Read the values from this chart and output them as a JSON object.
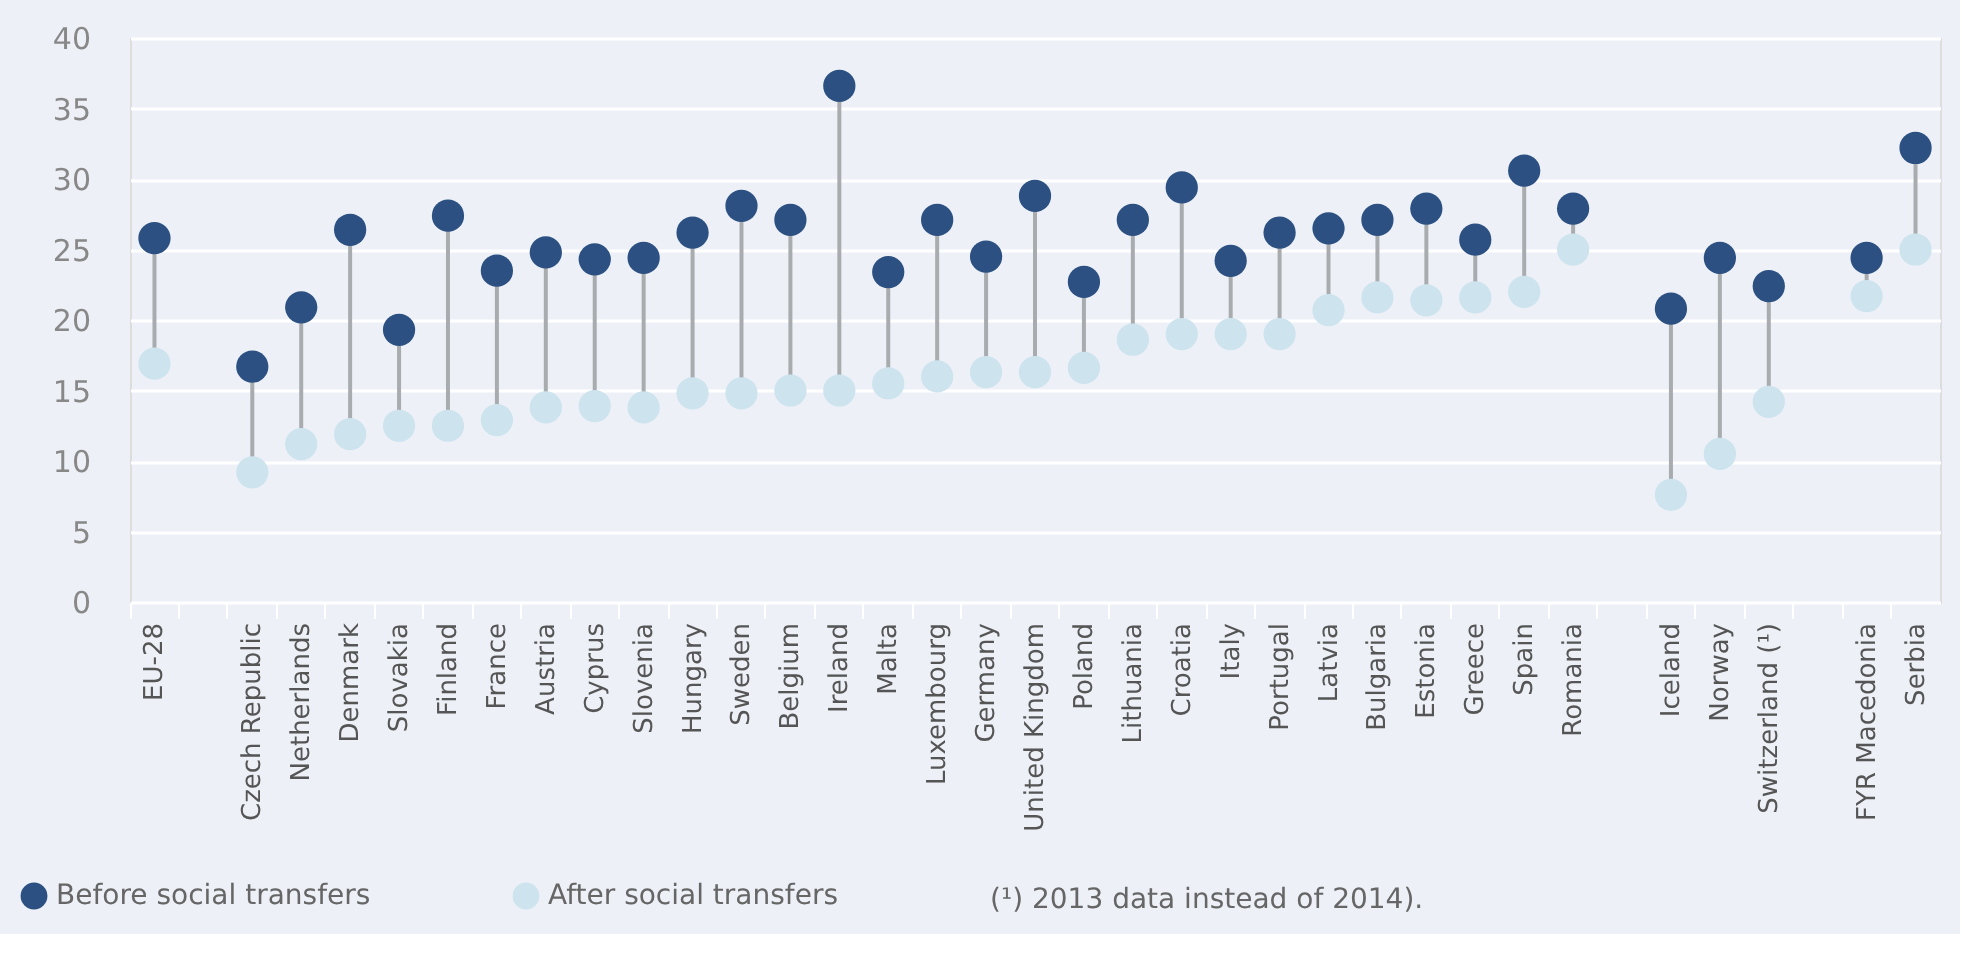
{
  "chart_data": {
    "type": "scatter",
    "categories": [
      "EU-28",
      null,
      "Czech Republic",
      "Netherlands",
      "Denmark",
      "Slovakia",
      "Finland",
      "France",
      "Austria",
      "Cyprus",
      "Slovenia",
      "Hungary",
      "Sweden",
      "Belgium",
      "Ireland",
      "Malta",
      "Luxembourg",
      "Germany",
      "United Kingdom",
      "Poland",
      "Lithuania",
      "Croatia",
      "Italy",
      "Portugal",
      "Latvia",
      "Bulgaria",
      "Estonia",
      "Greece",
      "Spain",
      "Romania",
      null,
      "Iceland",
      "Norway",
      "Switzerland (¹)",
      null,
      "FYR Macedonia",
      "Serbia"
    ],
    "series": [
      {
        "name": "Before social transfers",
        "color": "#2b5081",
        "values": [
          25.8,
          null,
          16.7,
          20.9,
          26.4,
          19.3,
          27.4,
          23.5,
          24.8,
          24.3,
          24.4,
          26.2,
          28.1,
          27.1,
          36.6,
          23.4,
          27.1,
          24.5,
          28.8,
          22.7,
          27.1,
          29.4,
          24.2,
          26.2,
          26.5,
          27.1,
          27.9,
          25.7,
          30.6,
          27.9,
          null,
          20.8,
          24.4,
          22.4,
          null,
          24.4,
          32.2
        ]
      },
      {
        "name": "After social transfers",
        "color": "#cde3ee",
        "values": [
          16.9,
          null,
          9.2,
          11.2,
          11.9,
          12.5,
          12.5,
          12.9,
          13.8,
          13.9,
          13.8,
          14.8,
          14.8,
          15.0,
          15.0,
          15.5,
          16.0,
          16.3,
          16.3,
          16.6,
          18.6,
          19.0,
          19.0,
          19.0,
          20.7,
          21.6,
          21.4,
          21.6,
          22.0,
          25.0,
          null,
          7.6,
          10.5,
          14.2,
          null,
          21.7,
          25.0
        ]
      }
    ],
    "ylim": [
      0,
      40
    ],
    "yticks": [
      0,
      5,
      10,
      15,
      20,
      25,
      30,
      35,
      40
    ],
    "grid": "y",
    "legend": "bottom left",
    "marker": "circle",
    "annotations": [
      "(¹) 2013 data instead of 2014)."
    ]
  }
}
